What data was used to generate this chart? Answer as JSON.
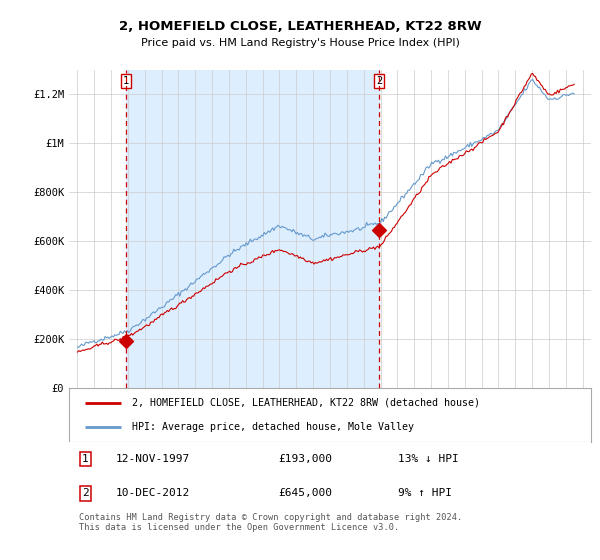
{
  "title": "2, HOMEFIELD CLOSE, LEATHERHEAD, KT22 8RW",
  "subtitle": "Price paid vs. HM Land Registry's House Price Index (HPI)",
  "sale1_date": 1997.87,
  "sale1_price": 193000,
  "sale2_date": 2012.92,
  "sale2_price": 645000,
  "sale1_text": "12-NOV-1997",
  "sale1_price_text": "£193,000",
  "sale1_hpi_text": "13% ↓ HPI",
  "sale2_text": "10-DEC-2012",
  "sale2_price_text": "£645,000",
  "sale2_hpi_text": "9% ↑ HPI",
  "legend1": "2, HOMEFIELD CLOSE, LEATHERHEAD, KT22 8RW (detached house)",
  "legend2": "HPI: Average price, detached house, Mole Valley",
  "footer": "Contains HM Land Registry data © Crown copyright and database right 2024.\nThis data is licensed under the Open Government Licence v3.0.",
  "line_color_red": "#cc0000",
  "line_color_blue": "#6699cc",
  "shade_color": "#ddeeff",
  "marker_color": "#cc0000",
  "dashed_color": "#cc0000",
  "grid_color": "#cccccc",
  "ylim": [
    0,
    1300000
  ],
  "xlim": [
    1994.5,
    2025.5
  ],
  "yticks": [
    0,
    200000,
    400000,
    600000,
    800000,
    1000000,
    1200000
  ],
  "ytick_labels": [
    "£0",
    "£200K",
    "£400K",
    "£600K",
    "£800K",
    "£1M",
    "£1.2M"
  ],
  "xticks": [
    1995,
    1996,
    1997,
    1998,
    1999,
    2000,
    2001,
    2002,
    2003,
    2004,
    2005,
    2006,
    2007,
    2008,
    2009,
    2010,
    2011,
    2012,
    2013,
    2014,
    2015,
    2016,
    2017,
    2018,
    2019,
    2020,
    2021,
    2022,
    2023,
    2024,
    2025
  ],
  "hpi_seed": 42,
  "hpi_noise_scale": 12000,
  "red_noise_scale": 9000
}
